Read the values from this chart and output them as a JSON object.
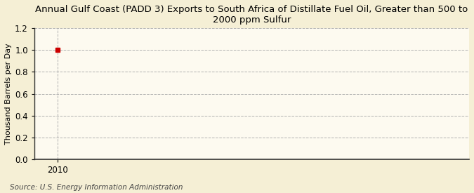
{
  "title": "Annual Gulf Coast (PADD 3) Exports to South Africa of Distillate Fuel Oil, Greater than 500 to\n2000 ppm Sulfur",
  "ylabel": "Thousand Barrels per Day",
  "source_text": "Source: U.S. Energy Information Administration",
  "background_color": "#f5efd5",
  "plot_bg_color": "#fdfaf0",
  "data_x": [
    2010
  ],
  "data_y": [
    1.0
  ],
  "marker_color": "#cc0000",
  "marker_size": 4,
  "xlim": [
    2009.3,
    2022.5
  ],
  "ylim": [
    0.0,
    1.2
  ],
  "yticks": [
    0.0,
    0.2,
    0.4,
    0.6,
    0.8,
    1.0,
    1.2
  ],
  "xticks": [
    2010
  ],
  "grid_color": "#b0b0b0",
  "grid_linestyle": "--",
  "axis_line_color": "#333333",
  "title_fontsize": 9.5,
  "ylabel_fontsize": 8,
  "tick_fontsize": 8.5,
  "source_fontsize": 7.5
}
